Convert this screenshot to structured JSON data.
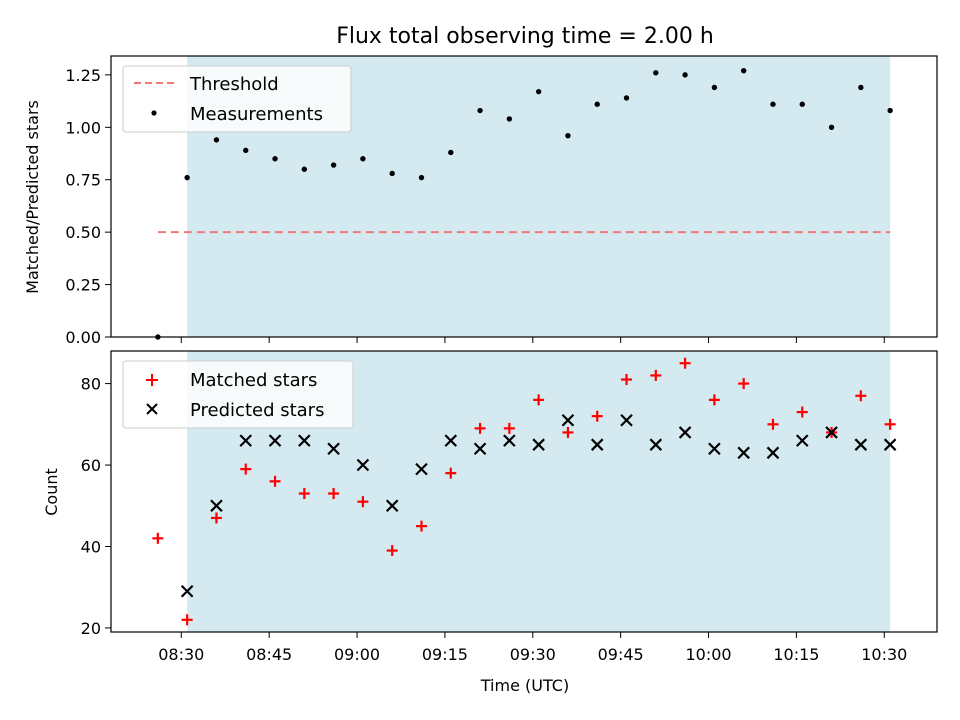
{
  "chart_data": [
    {
      "type": "scatter",
      "title": "Flux total observing time = 2.00 h",
      "ylabel": "Matched/Predicted stars",
      "ylim": [
        0.0,
        1.34
      ],
      "yticks": [
        "0.00",
        "0.25",
        "0.50",
        "0.75",
        "1.00",
        "1.25"
      ],
      "legend": {
        "position": "top-left",
        "entries": [
          "Threshold",
          "Measurements"
        ]
      },
      "shaded_region": {
        "x_start": "08:31",
        "x_end": "10:31",
        "color": "#d4eaf0"
      },
      "threshold": {
        "name": "Threshold",
        "value": 0.5,
        "x_start": "08:26",
        "x_end": "10:31",
        "color": "#f07878"
      },
      "series": [
        {
          "name": "Measurements",
          "color": "#000000",
          "x": [
            "08:26",
            "08:31",
            "08:36",
            "08:41",
            "08:46",
            "08:51",
            "08:56",
            "09:01",
            "09:06",
            "09:11",
            "09:16",
            "09:21",
            "09:26",
            "09:31",
            "09:36",
            "09:41",
            "09:46",
            "09:51",
            "09:56",
            "10:01",
            "10:06",
            "10:11",
            "10:16",
            "10:21",
            "10:26",
            "10:31"
          ],
          "y": [
            0.0,
            0.76,
            0.94,
            0.89,
            0.85,
            0.8,
            0.82,
            0.85,
            0.78,
            0.76,
            0.88,
            1.08,
            1.04,
            1.17,
            0.96,
            1.11,
            1.14,
            1.26,
            1.25,
            1.19,
            1.27,
            1.11,
            1.11,
            1.0,
            1.19,
            1.08
          ]
        }
      ]
    },
    {
      "type": "scatter",
      "xlabel": "Time (UTC)",
      "ylabel": "Count",
      "ylim": [
        19,
        88
      ],
      "yticks": [
        "20",
        "40",
        "60",
        "80"
      ],
      "xticks": [
        "08:30",
        "08:45",
        "09:00",
        "09:15",
        "09:30",
        "09:45",
        "10:00",
        "10:15",
        "10:30"
      ],
      "xlim": [
        "08:18",
        "10:39"
      ],
      "legend": {
        "position": "top-left",
        "entries": [
          "Matched stars",
          "Predicted stars"
        ]
      },
      "shaded_region": {
        "x_start": "08:31",
        "x_end": "10:31",
        "color": "#d4eaf0"
      },
      "series": [
        {
          "name": "Matched stars",
          "marker": "+",
          "color": "#ff0000",
          "x": [
            "08:26",
            "08:31",
            "08:36",
            "08:41",
            "08:46",
            "08:51",
            "08:56",
            "09:01",
            "09:06",
            "09:11",
            "09:16",
            "09:21",
            "09:26",
            "09:31",
            "09:36",
            "09:41",
            "09:46",
            "09:51",
            "09:56",
            "10:01",
            "10:06",
            "10:11",
            "10:16",
            "10:21",
            "10:26",
            "10:31"
          ],
          "y": [
            42,
            22,
            47,
            59,
            56,
            53,
            53,
            51,
            39,
            45,
            58,
            69,
            69,
            76,
            68,
            72,
            81,
            82,
            85,
            76,
            80,
            70,
            73,
            68,
            77,
            70
          ]
        },
        {
          "name": "Predicted stars",
          "marker": "x",
          "color": "#000000",
          "x": [
            "08:31",
            "08:36",
            "08:41",
            "08:46",
            "08:51",
            "08:56",
            "09:01",
            "09:06",
            "09:11",
            "09:16",
            "09:21",
            "09:26",
            "09:31",
            "09:36",
            "09:41",
            "09:46",
            "09:51",
            "09:56",
            "10:01",
            "10:06",
            "10:11",
            "10:16",
            "10:21",
            "10:26",
            "10:31"
          ],
          "y": [
            29,
            50,
            66,
            66,
            66,
            64,
            60,
            50,
            59,
            66,
            64,
            66,
            65,
            71,
            65,
            71,
            65,
            68,
            64,
            63,
            63,
            66,
            68,
            65,
            65
          ]
        }
      ]
    }
  ]
}
